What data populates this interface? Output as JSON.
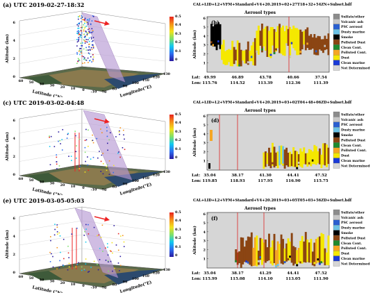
{
  "left_panels": [
    {
      "title": "(a) UTC 2019-02-27-18:32",
      "zlabel": "Altitude (km)",
      "xlabel": "Latitude (°N)",
      "ylabel": "Longitude(°E)"
    },
    {
      "title": "(c) UTC 2019-03-02-04:48",
      "zlabel": "Altitude (km)",
      "xlabel": "Latitude (°N)",
      "ylabel": "Longitude(°E)"
    },
    {
      "title": "(e) UTC 2019-03-05-05:03",
      "zlabel": "Altitude (km)",
      "xlabel": "Latitude (°N)",
      "ylabel": "Longitude(°E)"
    }
  ],
  "right_panels": [
    {
      "file_title": "CAL+LID+L2+VFM+Standard+V4+20.2019+02+27T18+32+54ZN+Subset.hdf",
      "subtitle": "Aerosol types",
      "label": "(b)",
      "lat": [
        "49.99",
        "46.89",
        "43.78",
        "40.66",
        "37.54"
      ],
      "lon": [
        "115.76",
        "114.52",
        "113.39",
        "112.36",
        "111.39"
      ]
    },
    {
      "file_title": "CAL+LID+L2+VFM+Standard+V4+20.2019+03+02T04+48+06ZD+Subset.hdf",
      "subtitle": "Aerosol types",
      "label": "(d)",
      "lat": [
        "35.04",
        "38.17",
        "41.30",
        "44.41",
        "47.52"
      ],
      "lon": [
        "119.85",
        "118.93",
        "117.95",
        "116.90",
        "115.75"
      ]
    },
    {
      "file_title": "CAL+LID+L2+VFM+Standard+V4+20.2019+03+05T05+03+56ZD+Subset.hdf",
      "subtitle": "Aerosol types",
      "label": "(f)",
      "lat": [
        "35.04",
        "38.17",
        "41.29",
        "44.41",
        "47.52"
      ],
      "lon": [
        "115.99",
        "115.08",
        "114.10",
        "113.05",
        "111.90"
      ]
    }
  ],
  "row_labels": {
    "lat": "Lat:",
    "lon": "Lon:",
    "yaxis": "Altitude (km)"
  },
  "legend": [
    {
      "label": "Sulfate/other",
      "color": "#8c8c8c"
    },
    {
      "label": "Volcanic ash",
      "color": "#c8c8c8"
    },
    {
      "label": "PSC aerosol",
      "color": "#2a5fd0"
    },
    {
      "label": "Dusty marine",
      "color": "#6cc2e6"
    },
    {
      "label": "Smoke",
      "color": "#000000"
    },
    {
      "label": "Polluted Dust",
      "color": "#8b4513"
    },
    {
      "label": "Clean Cont.",
      "color": "#1f8a2e"
    },
    {
      "label": "Polluted Cont.",
      "color": "#f5a623"
    },
    {
      "label": "Dust",
      "color": "#f5e800"
    },
    {
      "label": "Clean marine",
      "color": "#1a3ad8"
    },
    {
      "label": "Not Determined",
      "color": "#d6d6d6"
    }
  ],
  "colorbar_ticks": [
    "0.5",
    "0.4",
    "0.3",
    "0.2",
    "0.1",
    "0"
  ],
  "chart_data": [
    {
      "type": "heatmap",
      "title": "(a) UTC 2019-02-27-18:32",
      "zlim": [
        0,
        6
      ],
      "xlim": [
        -10,
        60
      ],
      "ylim": [
        70,
        130
      ]
    },
    {
      "type": "heatmap",
      "title": "(b)",
      "ylim": [
        0,
        6
      ],
      "yticks": [
        1,
        2,
        3,
        4,
        5,
        6
      ]
    },
    {
      "type": "heatmap",
      "title": "(c) UTC 2019-03-02-04:48",
      "zlim": [
        0,
        6
      ]
    },
    {
      "type": "heatmap",
      "title": "(d)",
      "ylim": [
        0,
        6
      ]
    },
    {
      "type": "heatmap",
      "title": "(e) UTC 2019-03-05-05:03",
      "zlim": [
        0,
        6
      ]
    },
    {
      "type": "heatmap",
      "title": "(f)",
      "ylim": [
        0,
        6
      ]
    }
  ],
  "ticks3d": {
    "z": [
      "6",
      "4",
      "2",
      "0"
    ],
    "lat": [
      "60",
      "50",
      "40",
      "30",
      "20",
      "10",
      "0",
      "-10"
    ],
    "lon": [
      "70",
      "80",
      "90",
      "100",
      "110",
      "120",
      "130"
    ]
  },
  "yticks": [
    "6",
    "5",
    "4",
    "3",
    "2",
    "1"
  ]
}
